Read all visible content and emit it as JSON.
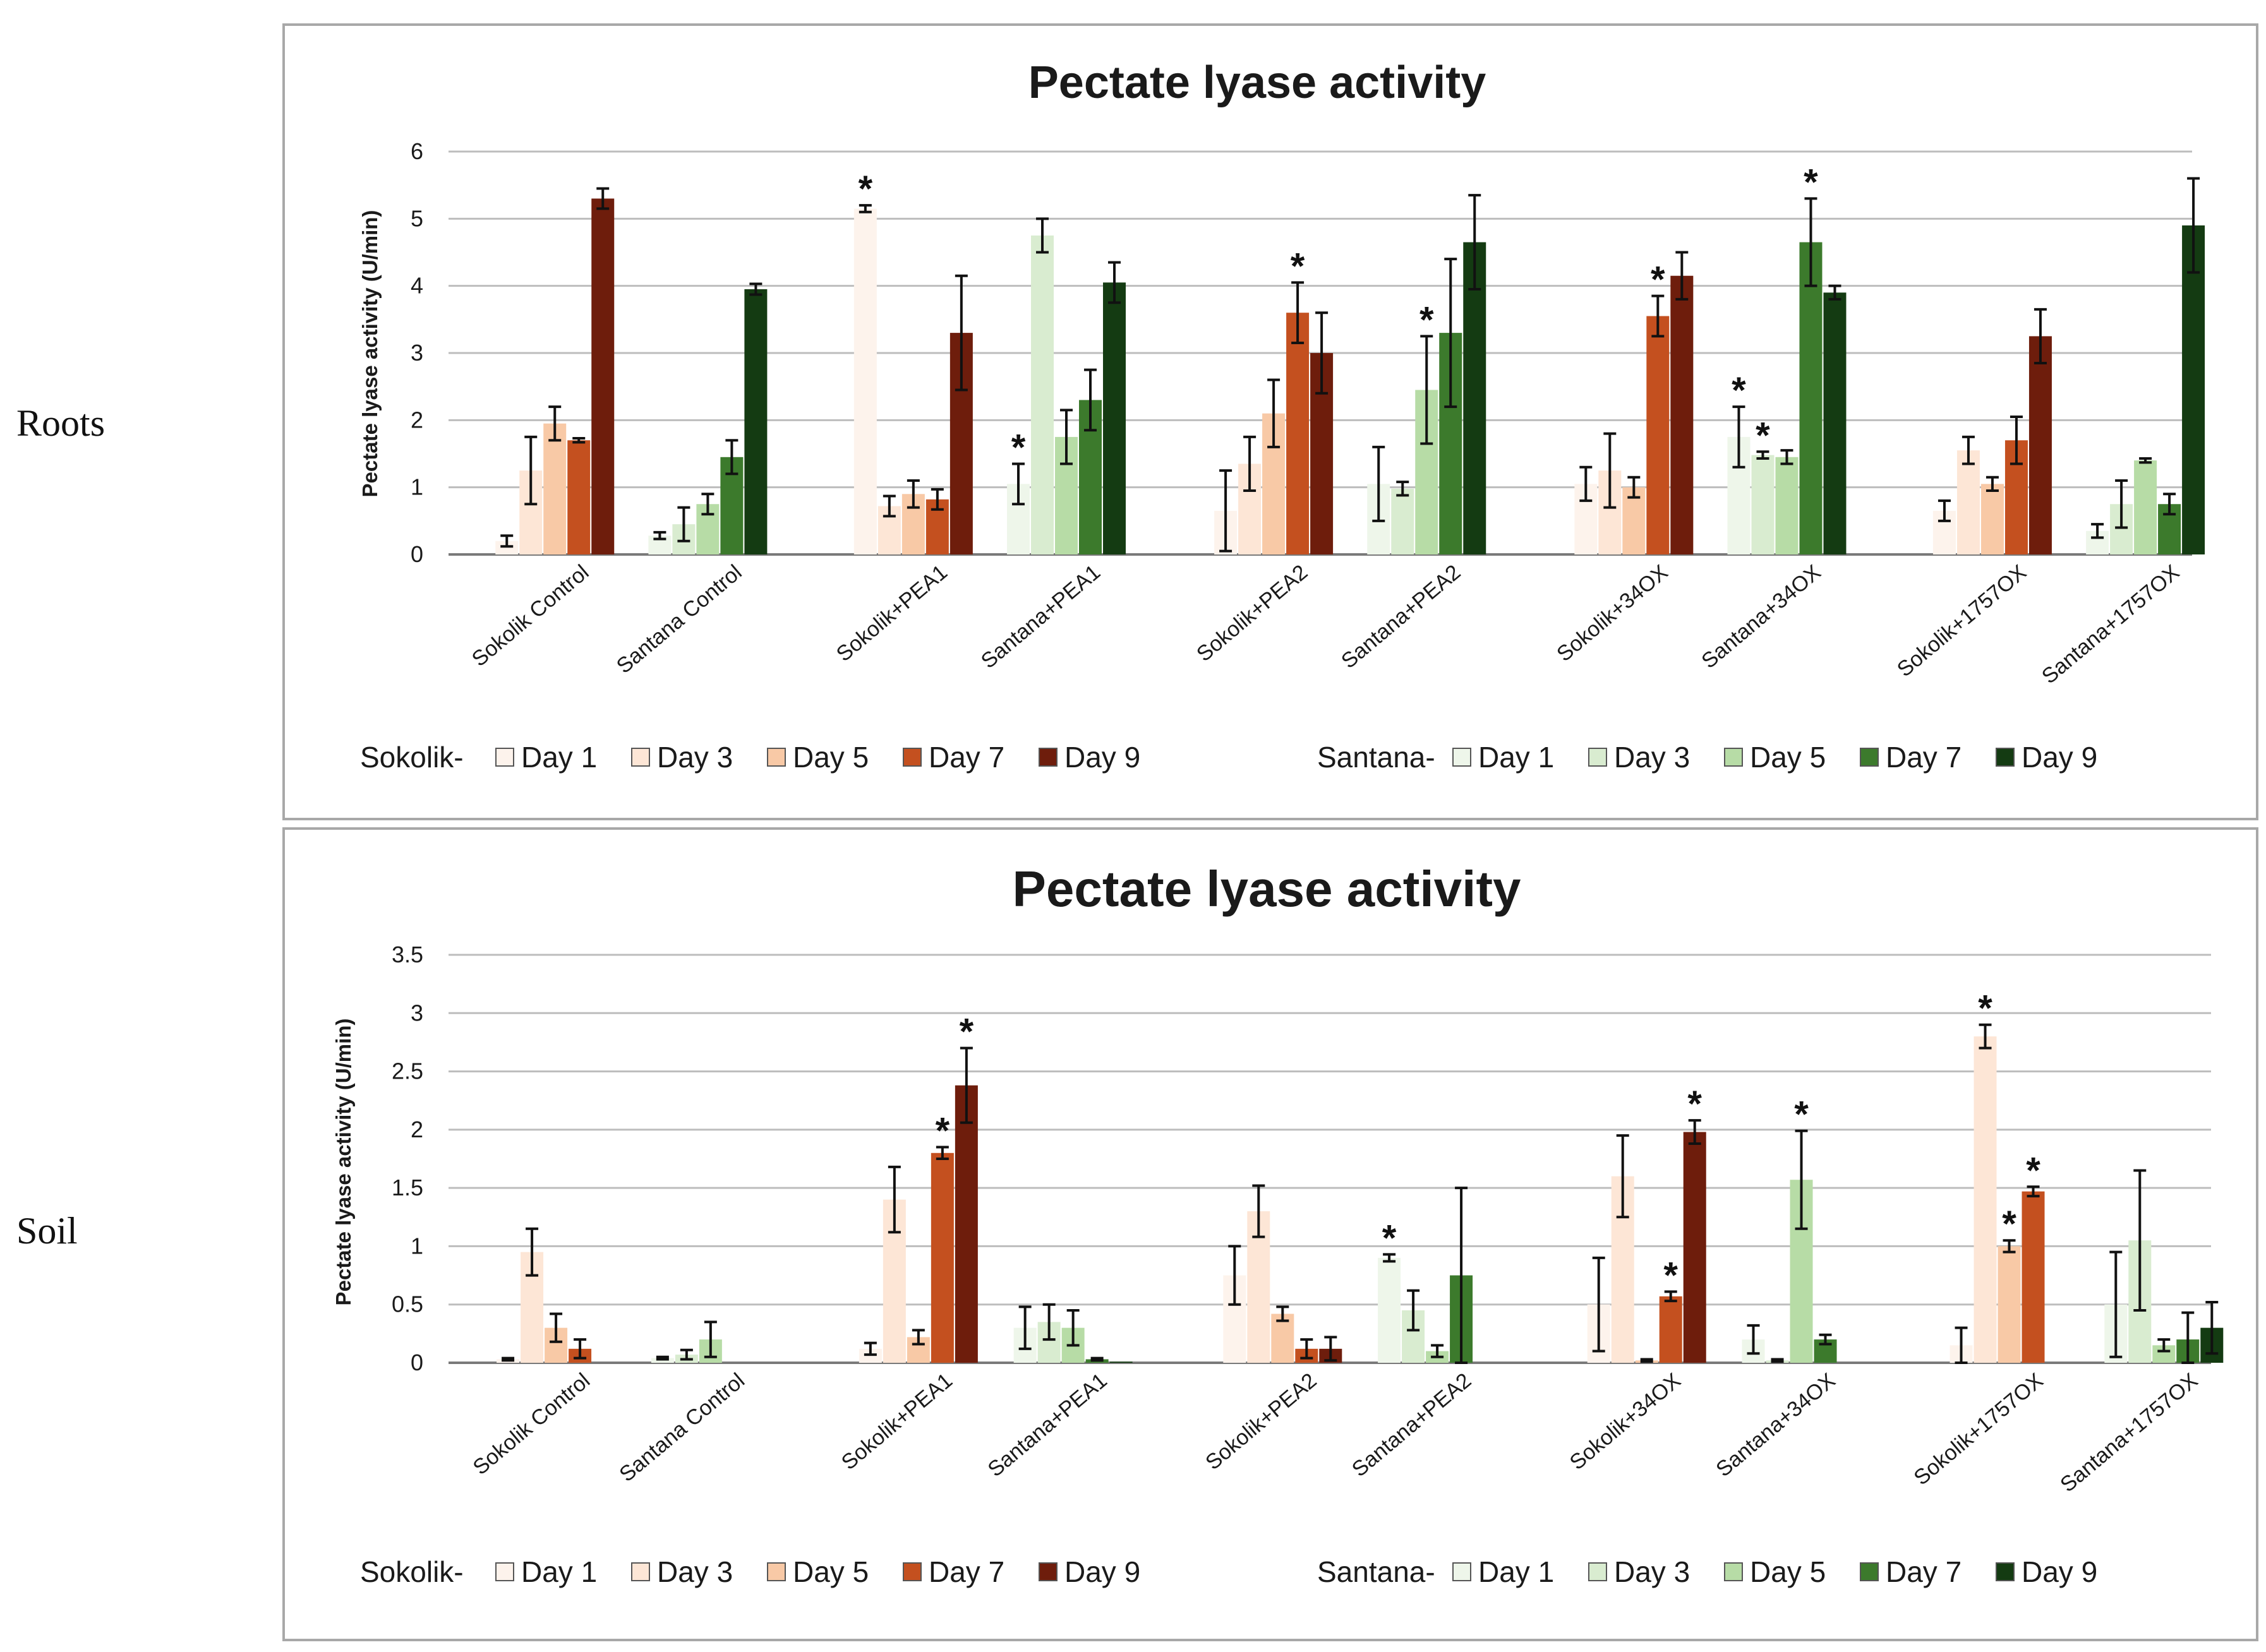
{
  "side_labels": [
    "Roots",
    "Soil"
  ],
  "colors": {
    "sokolik": [
      "#fdf3ec",
      "#fde6d6",
      "#f8c9a6",
      "#c4501f",
      "#6e1d0c"
    ],
    "santana": [
      "#eef6ea",
      "#d9ecd0",
      "#b7dca6",
      "#3c7a2c",
      "#143b12"
    ],
    "gridline": "#bdbdbd",
    "axis": "#7a7a7a",
    "frame": "#a8a8a8"
  },
  "chart_data": [
    {
      "type": "bar",
      "panel": "roots",
      "title": "Pectate lyase activity",
      "ylabel": "Pectate lyase activity (U/min)",
      "ylim": [
        0,
        6
      ],
      "yticks": [
        "0",
        "1",
        "2",
        "3",
        "4",
        "5",
        "6"
      ],
      "grid": true,
      "legend_position": "bottom",
      "legend": [
        {
          "prefix": "Sokolik-",
          "entries": [
            "Day 1",
            "Day 3",
            "Day 5",
            "Day 7",
            "Day 9"
          ]
        },
        {
          "prefix": "Santana-",
          "entries": [
            "Day 1",
            "Day 3",
            "Day 5",
            "Day 7",
            "Day 9"
          ]
        }
      ],
      "categories": [
        "Sokolik Control",
        "Santana Control",
        "Sokolik+PEA1",
        "Santana+PEA1",
        "Sokolik+PEA2",
        "Santana+PEA2",
        "Sokolik+34OX",
        "Santana+34OX",
        "Sokolik+1757OX",
        "Santana+1757OX"
      ],
      "series_days": [
        "Day 1",
        "Day 3",
        "Day 5",
        "Day 7",
        "Day 9"
      ],
      "values": [
        [
          0.2,
          1.25,
          1.95,
          1.7,
          5.3
        ],
        [
          0.28,
          0.45,
          0.75,
          1.45,
          3.95
        ],
        [
          5.15,
          0.72,
          0.9,
          0.82,
          3.3
        ],
        [
          1.05,
          4.75,
          1.75,
          2.3,
          4.05
        ],
        [
          0.65,
          1.35,
          2.1,
          3.6,
          3.0
        ],
        [
          1.05,
          0.98,
          2.45,
          3.3,
          4.65
        ],
        [
          1.05,
          1.25,
          1.0,
          3.55,
          4.15
        ],
        [
          1.75,
          1.48,
          1.45,
          4.65,
          3.9
        ],
        [
          0.65,
          1.55,
          1.05,
          1.7,
          3.25
        ],
        [
          0.35,
          0.75,
          1.4,
          0.75,
          4.9
        ]
      ],
      "errors": [
        [
          0.08,
          0.5,
          0.25,
          0.03,
          0.15
        ],
        [
          0.05,
          0.25,
          0.15,
          0.25,
          0.08
        ],
        [
          0.05,
          0.15,
          0.2,
          0.15,
          0.85
        ],
        [
          0.3,
          0.25,
          0.4,
          0.45,
          0.3
        ],
        [
          0.6,
          0.4,
          0.5,
          0.45,
          0.6
        ],
        [
          0.55,
          0.1,
          0.8,
          1.1,
          0.7
        ],
        [
          0.25,
          0.55,
          0.15,
          0.3,
          0.35
        ],
        [
          0.45,
          0.05,
          0.1,
          0.65,
          0.1
        ],
        [
          0.15,
          0.2,
          0.1,
          0.35,
          0.4
        ],
        [
          0.1,
          0.35,
          0.03,
          0.15,
          0.7
        ]
      ],
      "significant": [
        [],
        [],
        [
          0
        ],
        [
          0
        ],
        [
          3
        ],
        [
          2
        ],
        [
          3
        ],
        [
          0,
          1,
          3
        ],
        [],
        []
      ],
      "annotation_mark": "*"
    },
    {
      "type": "bar",
      "panel": "soil",
      "title": "Pectate lyase activity",
      "ylabel": "Pectate lyase activity (U/min)",
      "ylim": [
        0,
        3.5
      ],
      "yticks": [
        "0",
        "0.5",
        "1",
        "1.5",
        "2",
        "2.5",
        "3",
        "3.5"
      ],
      "grid": true,
      "legend_position": "bottom",
      "legend": [
        {
          "prefix": "Sokolik-",
          "entries": [
            "Day 1",
            "Day 3",
            "Day 5",
            "Day 7",
            "Day 9"
          ]
        },
        {
          "prefix": "Santana-",
          "entries": [
            "Day 1",
            "Day 3",
            "Day 5",
            "Day 7",
            "Day 9"
          ]
        }
      ],
      "categories": [
        "Sokolik Control",
        "Santana Control",
        "Sokolik+PEA1",
        "Santana+PEA1",
        "Sokolik+PEA2",
        "Santana+PEA2",
        "Sokolik+34OX",
        "Santana+34OX",
        "Sokolik+1757OX",
        "Santana+1757OX"
      ],
      "series_days": [
        "Day 1",
        "Day 3",
        "Day 5",
        "Day 7",
        "Day 9"
      ],
      "values": [
        [
          0.03,
          0.95,
          0.3,
          0.12,
          0.0
        ],
        [
          0.04,
          0.07,
          0.2,
          0.0,
          0.0
        ],
        [
          0.12,
          1.4,
          0.22,
          1.8,
          2.38
        ],
        [
          0.3,
          0.35,
          0.3,
          0.03,
          0.01
        ],
        [
          0.75,
          1.3,
          0.42,
          0.12,
          0.12
        ],
        [
          0.9,
          0.45,
          0.1,
          0.75,
          0.0
        ],
        [
          0.5,
          1.6,
          0.02,
          0.57,
          1.98
        ],
        [
          0.2,
          0.02,
          1.57,
          0.2,
          0.0
        ],
        [
          0.15,
          2.8,
          1.0,
          1.47,
          0.0
        ],
        [
          0.5,
          1.05,
          0.15,
          0.2,
          0.3
        ]
      ],
      "errors": [
        [
          0.01,
          0.2,
          0.12,
          0.08,
          0.0
        ],
        [
          0.01,
          0.04,
          0.15,
          0.0,
          0.0
        ],
        [
          0.05,
          0.28,
          0.06,
          0.05,
          0.32
        ],
        [
          0.18,
          0.15,
          0.15,
          0.01,
          0.0
        ],
        [
          0.25,
          0.22,
          0.06,
          0.08,
          0.1
        ],
        [
          0.03,
          0.17,
          0.05,
          0.75,
          0.0
        ],
        [
          0.4,
          0.35,
          0.01,
          0.04,
          0.1
        ],
        [
          0.12,
          0.01,
          0.42,
          0.04,
          0.0
        ],
        [
          0.15,
          0.1,
          0.05,
          0.04,
          0.0
        ],
        [
          0.45,
          0.6,
          0.05,
          0.23,
          0.22
        ]
      ],
      "significant": [
        [],
        [],
        [
          3,
          4
        ],
        [],
        [],
        [
          0
        ],
        [
          3,
          4
        ],
        [
          2
        ],
        [
          1,
          2,
          3
        ],
        []
      ],
      "annotation_mark": "*"
    }
  ]
}
